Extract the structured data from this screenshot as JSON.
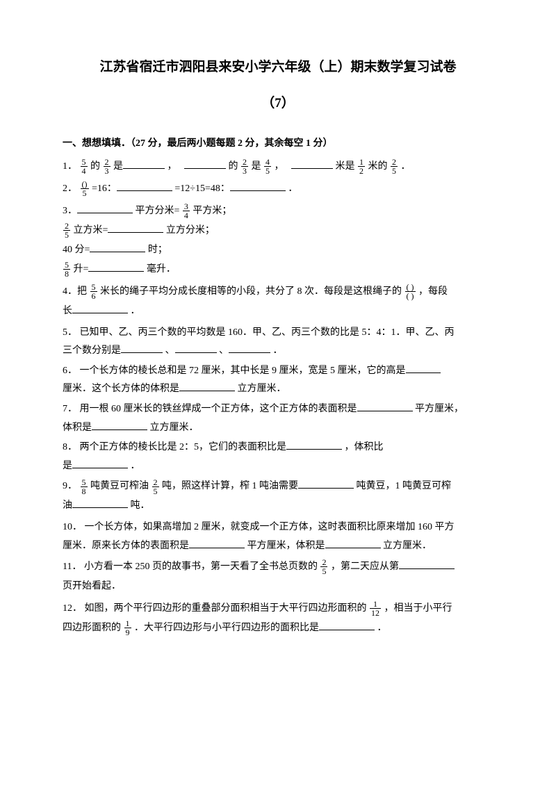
{
  "title": "江苏省宿迁市泗阳县来安小学六年级（上）期末数学复习试卷",
  "subtitle": "（7）",
  "section1": {
    "header": "一、想想填填．（27 分，最后两小题每题 2 分，其余每空 1 分）",
    "q1": {
      "prefix": "1．",
      "f1n": "5",
      "f1d": "4",
      "t1": "的",
      "f2n": "2",
      "f2d": "3",
      "t2": "是",
      "t3": "，",
      "t4": "的",
      "f3n": "2",
      "f3d": "3",
      "t5": "是",
      "f4n": "4",
      "f4d": "5",
      "t6": "，",
      "t7": "米是",
      "f5n": "1",
      "f5d": "2",
      "t8": "米的",
      "f6n": "2",
      "f6d": "5",
      "t9": "．"
    },
    "q2": {
      "prefix": "2．",
      "f1n": "()",
      "f1d": "5",
      "t1": " =16：",
      "t2": "=12÷15=48：",
      "t3": "．"
    },
    "q3": {
      "prefix": "3．",
      "t1": "平方分米=",
      "f1n": "3",
      "f1d": "4",
      "t2": "平方米；",
      "f2n": "2",
      "f2d": "5",
      "t3": "立方米=",
      "t4": "立方分米；",
      "t5": "40 分=",
      "t6": "时；",
      "f3n": "5",
      "f3d": "8",
      "t7": "升=",
      "t8": "毫升．"
    },
    "q4": {
      "prefix": "4．把",
      "f1n": "5",
      "f1d": "6",
      "t1": "米长的绳子平均分成长度相等的小段，共分了 8 次．每段是这根绳子的",
      "f2n": "( )",
      "f2d": "( )",
      "t2": "，每段",
      "t3": "长",
      "t4": "．"
    },
    "q5": {
      "prefix": "5．",
      "t1": "已知甲、乙、丙三个数的平均数是 160．甲、乙、丙三个数的比是 5：4：1．甲、乙、丙",
      "t2": "三个数分别是",
      "t3": "、",
      "t4": "、",
      "t5": "．"
    },
    "q6": {
      "prefix": "6．",
      "t1": "一个长方体的棱长总和是 72 厘米，其中长是 9 厘米，宽是 5 厘米，它的高是",
      "t2": "厘米．这个长方体的体积是",
      "t3": "立方厘米．"
    },
    "q7": {
      "prefix": "7．",
      "t1": "用一根 60 厘米长的铁丝焊成一个正方体，这个正方体的表面积是",
      "t2": "平方厘米，",
      "t3": "体积是",
      "t4": "立方厘米．"
    },
    "q8": {
      "prefix": "8．",
      "t1": "两个正方体的棱长比是 2：5，它们的表面积比是",
      "t2": "，体积比",
      "t3": "是",
      "t4": "．"
    },
    "q9": {
      "prefix": "9．",
      "f1n": "5",
      "f1d": "8",
      "t1": "吨黄豆可榨油",
      "f2n": "2",
      "f2d": "5",
      "t2": "吨，照这样计算，榨 1 吨油需要",
      "t3": "吨黄豆，1 吨黄豆可榨",
      "t4": "油",
      "t5": "吨．"
    },
    "q10": {
      "prefix": "10．",
      "t1": "一个长方体，如果高增加 2 厘米，就变成一个正方体，这时表面积比原来增加 160 平方",
      "t2": "厘米．原来长方体的表面积是",
      "t3": "平方厘米，体积是",
      "t4": "立方厘米．"
    },
    "q11": {
      "prefix": "11．",
      "t1": "小方看一本 250 页的故事书，第一天看了全书总页数的",
      "f1n": "2",
      "f1d": "5",
      "t2": "，第二天应从第",
      "t3": "页开始看起．"
    },
    "q12": {
      "prefix": "12．",
      "t1": "如图，两个平行四边形的重叠部分面积相当于大平行四边形面积的",
      "f1n": "1",
      "f1d": "12",
      "t2": "，相当于小平行",
      "t3": "四边形面积的",
      "f2n": "1",
      "f2d": "9",
      "t4": "．大平行四边形与小平行四边形的面积比是",
      "t5": "．"
    }
  }
}
